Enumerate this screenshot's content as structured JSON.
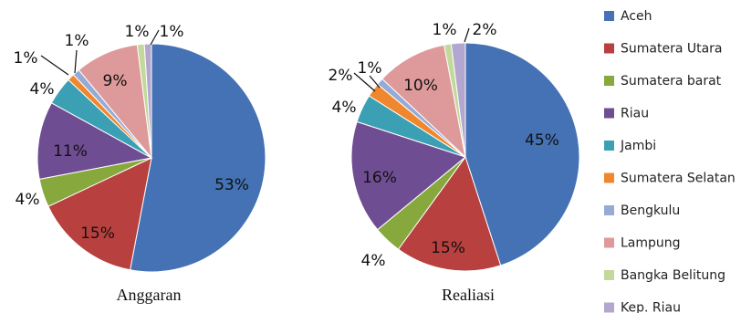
{
  "legend": [
    {
      "label": "Aceh",
      "color": "#4472B4"
    },
    {
      "label": "Sumatera Utara",
      "color": "#B8403E"
    },
    {
      "label": "Sumatera barat",
      "color": "#86A83D"
    },
    {
      "label": "Riau",
      "color": "#6F4D92"
    },
    {
      "label": "Jambi",
      "color": "#3CA0B4"
    },
    {
      "label": "Sumatera Selatan",
      "color": "#F0872E"
    },
    {
      "label": "Bengkulu",
      "color": "#95ABD6"
    },
    {
      "label": "Lampung",
      "color": "#DE9A9A"
    },
    {
      "label": "Bangka Belitung",
      "color": "#C2D99B"
    },
    {
      "label": "Kep. Riau",
      "color": "#B4A7CF"
    }
  ],
  "chart_data": [
    {
      "type": "pie",
      "title": "Anggaran",
      "categories": [
        "Aceh",
        "Sumatera Utara",
        "Sumatera barat",
        "Riau",
        "Jambi",
        "Sumatera Selatan",
        "Bengkulu",
        "Lampung",
        "Bangka Belitung",
        "Kep. Riau"
      ],
      "values": [
        53,
        15,
        4,
        11,
        4,
        1,
        1,
        9,
        1,
        1
      ],
      "labels": [
        "53%",
        "15%",
        "4%",
        "11%",
        "4%",
        "1%",
        "1%",
        "9%",
        "1%",
        "1%"
      ],
      "legend_position": "right"
    },
    {
      "type": "pie",
      "title": "Realiasi",
      "categories": [
        "Aceh",
        "Sumatera Utara",
        "Sumatera barat",
        "Riau",
        "Jambi",
        "Sumatera Selatan",
        "Bengkulu",
        "Lampung",
        "Bangka Belitung",
        "Kep. Riau"
      ],
      "values": [
        45,
        15,
        4,
        16,
        4,
        2,
        1,
        10,
        1,
        2
      ],
      "labels": [
        "45%",
        "15%",
        "4%",
        "16%",
        "4%",
        "2%",
        "1%",
        "10%",
        "1%",
        "2%"
      ],
      "legend_position": "right"
    }
  ]
}
